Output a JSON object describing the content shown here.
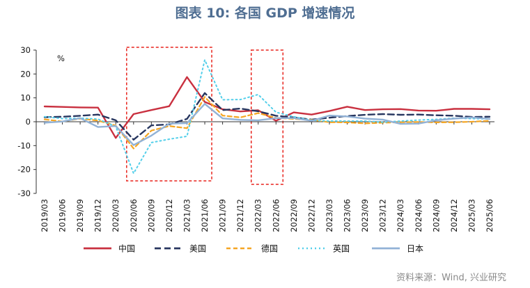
{
  "colors": {
    "title": "#4F6E92",
    "axis": "#333333",
    "highlight_box": "#E8221B",
    "source": "#8a8a8a"
  },
  "source_text": "资料来源：Wind, 兴业研究",
  "chart_data": {
    "type": "line",
    "title": "图表 10: 各国 GDP 增速情况",
    "unit_label": "%",
    "xlabel": "",
    "ylabel": "%",
    "ylim": [
      -30,
      30
    ],
    "yticks": [
      -30,
      -20,
      -10,
      0,
      10,
      20,
      30
    ],
    "grid": false,
    "legend_position": "bottom",
    "categories": [
      "2019/03",
      "2019/06",
      "2019/09",
      "2019/12",
      "2020/03",
      "2020/06",
      "2020/09",
      "2020/12",
      "2021/03",
      "2021/06",
      "2021/09",
      "2021/12",
      "2022/03",
      "2022/06",
      "2022/09",
      "2022/12",
      "2023/03",
      "2023/06",
      "2023/09",
      "2023/12",
      "2024/03",
      "2024/06",
      "2024/09",
      "2024/12",
      "2025/03",
      "2025/06"
    ],
    "highlight_ranges": [
      [
        "2020/06",
        "2021/06"
      ],
      [
        "2022/03",
        "2022/06"
      ]
    ],
    "series": [
      {
        "name": "中国",
        "color": "#C9303F",
        "dash": "",
        "width": 2.4,
        "values": [
          6.4,
          6.2,
          6.0,
          5.9,
          -6.8,
          3.2,
          4.9,
          6.5,
          18.7,
          8.3,
          5.2,
          4.3,
          4.8,
          0.4,
          3.9,
          3.0,
          4.5,
          6.3,
          4.9,
          5.2,
          5.3,
          4.7,
          4.6,
          5.4,
          5.4,
          5.2
        ]
      },
      {
        "name": "美国",
        "color": "#27365F",
        "dash": "9,5",
        "width": 2.4,
        "values": [
          1.9,
          2.1,
          2.5,
          3.0,
          0.6,
          -7.5,
          -1.5,
          -1.1,
          1.2,
          12.0,
          4.9,
          5.5,
          4.4,
          2.5,
          1.8,
          0.9,
          1.7,
          2.4,
          2.9,
          3.2,
          2.9,
          3.0,
          2.7,
          2.5,
          2.0,
          2.1
        ]
      },
      {
        "name": "德国",
        "color": "#F5A623",
        "dash": "6,4",
        "width": 2.2,
        "values": [
          1.0,
          0.1,
          1.3,
          0.5,
          -1.6,
          -11.2,
          -3.7,
          -1.8,
          -2.7,
          10.4,
          2.6,
          1.8,
          3.6,
          1.6,
          1.2,
          0.8,
          -0.2,
          -0.3,
          -0.7,
          -0.4,
          -0.2,
          -0.1,
          -0.3,
          -0.2,
          0.0,
          0.4
        ]
      },
      {
        "name": "英国",
        "color": "#53CFEA",
        "dash": "2,4",
        "width": 2.0,
        "values": [
          2.1,
          1.3,
          1.5,
          1.1,
          -2.0,
          -21.6,
          -8.7,
          -7.3,
          -6.1,
          25.9,
          9.2,
          9.3,
          11.4,
          4.0,
          2.1,
          0.6,
          0.3,
          0.3,
          0.3,
          -0.2,
          0.3,
          0.7,
          1.0,
          1.5,
          1.3,
          1.2
        ]
      },
      {
        "name": "日本",
        "color": "#92B2D6",
        "dash": "",
        "width": 2.4,
        "values": [
          -0.4,
          0.1,
          1.5,
          -2.2,
          -1.8,
          -9.8,
          -5.8,
          -0.8,
          -0.6,
          7.5,
          1.4,
          0.8,
          0.6,
          1.5,
          1.5,
          0.4,
          2.6,
          2.2,
          1.3,
          0.9,
          -0.9,
          -0.8,
          0.6,
          1.3,
          1.8,
          1.2
        ]
      }
    ]
  }
}
